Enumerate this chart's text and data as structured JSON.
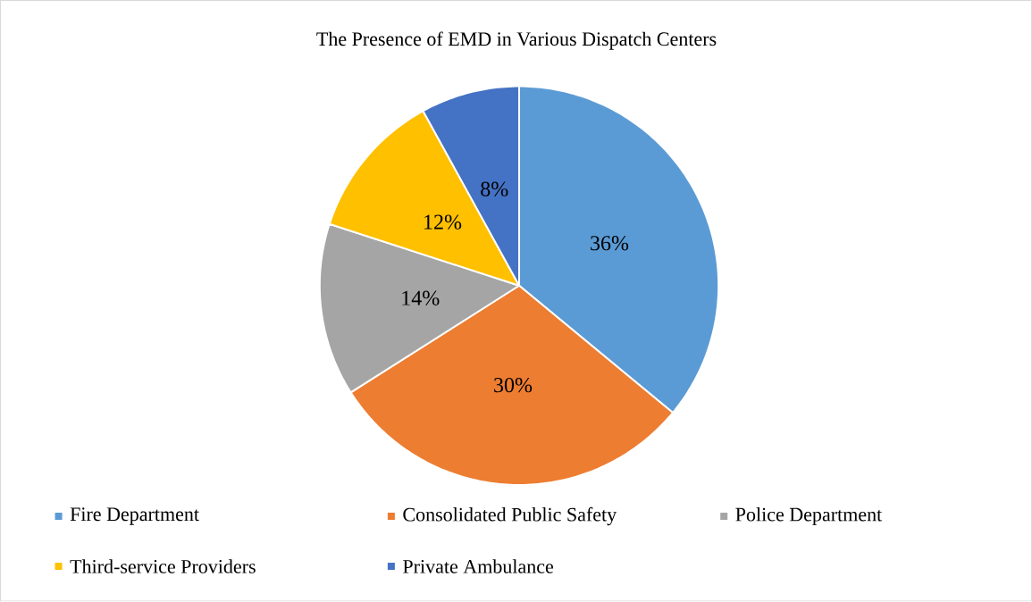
{
  "chart_data": {
    "type": "pie",
    "title": "The Presence of EMD in Various Dispatch Centers",
    "categories": [
      "Fire Department",
      "Consolidated Public Safety",
      "Police Department",
      "Third-service Providers",
      "Private Ambulance"
    ],
    "values": [
      36,
      30,
      14,
      12,
      8
    ],
    "colors": [
      "#5b9bd5",
      "#ed7d31",
      "#a5a5a5",
      "#ffc000",
      "#4472c4"
    ],
    "value_labels": [
      "36%",
      "30%",
      "14%",
      "12%",
      "8%"
    ],
    "legend": "bottom"
  }
}
